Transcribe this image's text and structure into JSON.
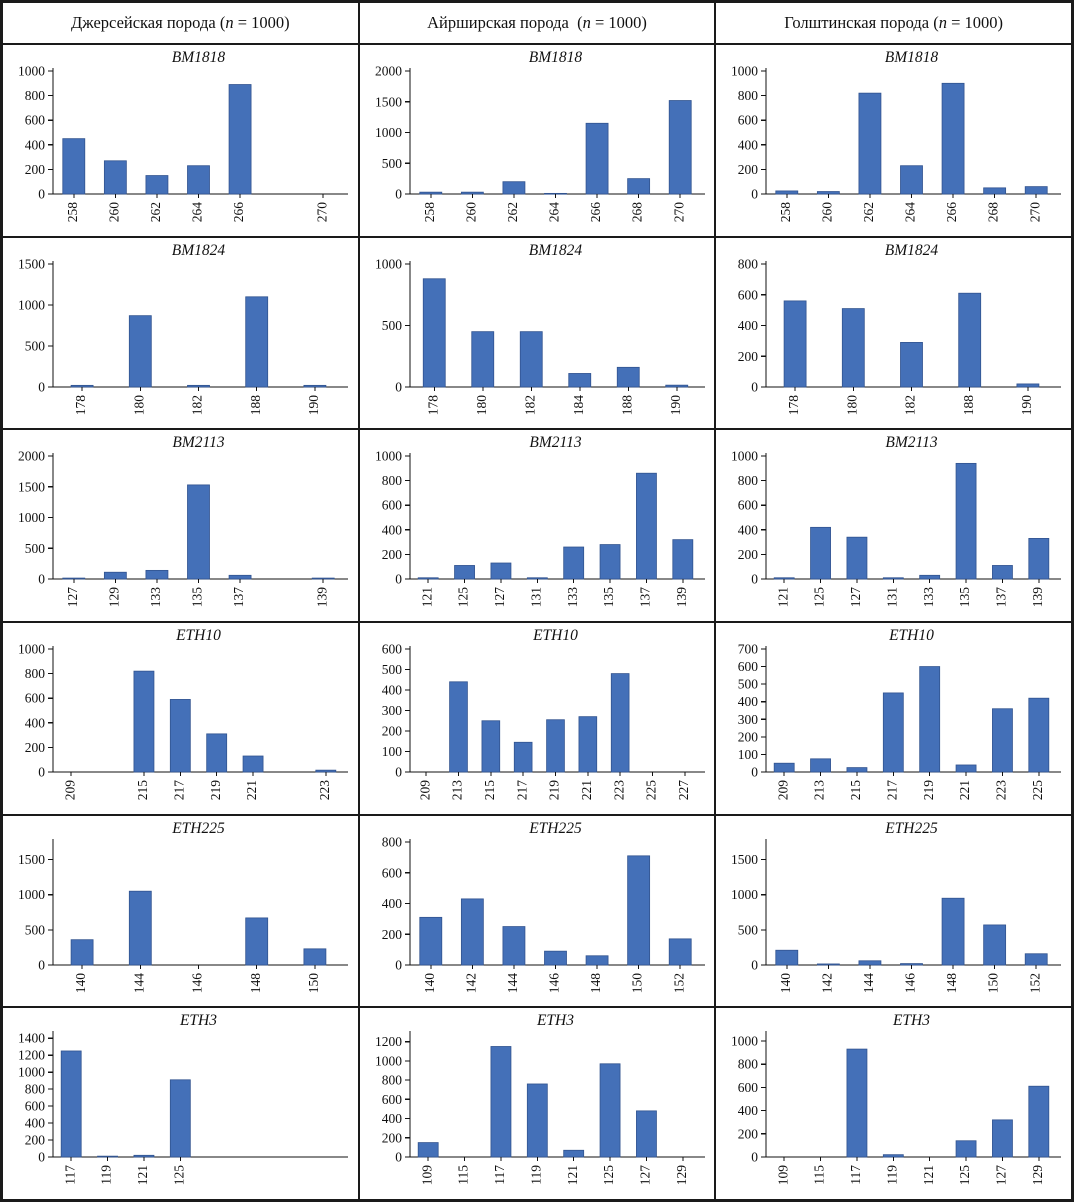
{
  "header": {
    "columns": [
      {
        "name": "Джерсейская порода",
        "open": " (",
        "n": "n",
        "rest": " = 1000)"
      },
      {
        "name": "Айрширская порода",
        "open": "  (",
        "n": "n",
        "rest": " = 1000)"
      },
      {
        "name": "Голштинская порода",
        "open": " (",
        "n": "n",
        "rest": " = 1000)"
      }
    ]
  },
  "colors": {
    "bar": "#4470b8",
    "bar_edge": "#31538f",
    "axis": "#111111"
  },
  "chart_data": [
    {
      "type": "bar",
      "breed": "Джерсейская",
      "title": "BM1818",
      "ymax": 1000,
      "yticks": [
        0,
        200,
        400,
        600,
        800,
        1000
      ],
      "categories": [
        "258",
        "260",
        "262",
        "264",
        "266",
        "",
        "270"
      ],
      "values": [
        450,
        270,
        150,
        230,
        890,
        0,
        0
      ]
    },
    {
      "type": "bar",
      "breed": "Айрширская",
      "title": "BM1818",
      "ymax": 2000,
      "yticks": [
        0,
        500,
        1000,
        1500,
        2000
      ],
      "categories": [
        "258",
        "260",
        "262",
        "264",
        "266",
        "268",
        "270"
      ],
      "values": [
        30,
        30,
        200,
        10,
        1150,
        250,
        1520
      ]
    },
    {
      "type": "bar",
      "breed": "Голштинская",
      "title": "BM1818",
      "ymax": 1000,
      "yticks": [
        0,
        200,
        400,
        600,
        800,
        1000
      ],
      "categories": [
        "258",
        "260",
        "262",
        "264",
        "266",
        "268",
        "270"
      ],
      "values": [
        25,
        20,
        820,
        230,
        900,
        50,
        60
      ]
    },
    {
      "type": "bar",
      "breed": "Джерсейская",
      "title": "BM1824",
      "ymax": 1500,
      "yticks": [
        0,
        500,
        1000,
        1500
      ],
      "categories": [
        "178",
        "180",
        "182",
        "188",
        "190"
      ],
      "values": [
        20,
        870,
        20,
        1100,
        20
      ]
    },
    {
      "type": "bar",
      "breed": "Айрширская",
      "title": "BM1824",
      "ymax": 1000,
      "yticks": [
        0,
        500,
        1000
      ],
      "categories": [
        "178",
        "180",
        "182",
        "184",
        "188",
        "190"
      ],
      "values": [
        880,
        450,
        450,
        110,
        160,
        15
      ]
    },
    {
      "type": "bar",
      "breed": "Голштинская",
      "title": "BM1824",
      "ymax": 800,
      "yticks": [
        0,
        200,
        400,
        600,
        800
      ],
      "categories": [
        "178",
        "180",
        "182",
        "188",
        "190"
      ],
      "values": [
        560,
        510,
        290,
        610,
        20
      ]
    },
    {
      "type": "bar",
      "breed": "Джерсейская",
      "title": "BM2113",
      "ymax": 2000,
      "yticks": [
        0,
        500,
        1000,
        1500,
        2000
      ],
      "categories": [
        "127",
        "129",
        "133",
        "135",
        "137",
        "",
        "139"
      ],
      "values": [
        15,
        110,
        140,
        1530,
        60,
        0,
        15
      ]
    },
    {
      "type": "bar",
      "breed": "Айрширская",
      "title": "BM2113",
      "ymax": 1000,
      "yticks": [
        0,
        200,
        400,
        600,
        800,
        1000
      ],
      "categories": [
        "121",
        "125",
        "127",
        "131",
        "133",
        "135",
        "137",
        "139"
      ],
      "values": [
        10,
        110,
        130,
        10,
        260,
        280,
        860,
        320
      ]
    },
    {
      "type": "bar",
      "breed": "Голштинская",
      "title": "BM2113",
      "ymax": 1000,
      "yticks": [
        0,
        200,
        400,
        600,
        800,
        1000
      ],
      "categories": [
        "121",
        "125",
        "127",
        "131",
        "133",
        "135",
        "137",
        "139"
      ],
      "values": [
        10,
        420,
        340,
        10,
        30,
        940,
        110,
        330
      ]
    },
    {
      "type": "bar",
      "breed": "Джерсейская",
      "title": "ETH10",
      "ymax": 1000,
      "yticks": [
        0,
        200,
        400,
        600,
        800,
        1000
      ],
      "categories": [
        "209",
        "",
        "215",
        "217",
        "219",
        "221",
        "",
        "223"
      ],
      "values": [
        0,
        0,
        820,
        590,
        310,
        130,
        0,
        15
      ]
    },
    {
      "type": "bar",
      "breed": "Айрширская",
      "title": "ETH10",
      "ymax": 600,
      "yticks": [
        0,
        100,
        200,
        300,
        400,
        500,
        600
      ],
      "categories": [
        "209",
        "213",
        "215",
        "217",
        "219",
        "221",
        "223",
        "225",
        "227"
      ],
      "values": [
        0,
        440,
        250,
        145,
        255,
        270,
        480,
        0,
        0
      ]
    },
    {
      "type": "bar",
      "breed": "Голштинская",
      "title": "ETH10",
      "ymax": 700,
      "yticks": [
        0,
        100,
        200,
        300,
        400,
        500,
        600,
        700
      ],
      "categories": [
        "209",
        "213",
        "215",
        "217",
        "219",
        "221",
        "223",
        "225"
      ],
      "values": [
        50,
        75,
        25,
        450,
        600,
        40,
        360,
        420
      ]
    },
    {
      "type": "bar",
      "breed": "Джерсейская",
      "title": "ETH225",
      "ymax": 1750,
      "yticks": [
        0,
        500,
        1000,
        1500
      ],
      "categories": [
        "140",
        "144",
        "146",
        "148",
        "150"
      ],
      "values": [
        360,
        1050,
        0,
        670,
        230
      ]
    },
    {
      "type": "bar",
      "breed": "Айрширская",
      "title": "ETH225",
      "ymax": 800,
      "yticks": [
        0,
        200,
        400,
        600,
        800
      ],
      "categories": [
        "140",
        "142",
        "144",
        "146",
        "148",
        "150",
        "152"
      ],
      "values": [
        310,
        430,
        250,
        90,
        60,
        710,
        170
      ]
    },
    {
      "type": "bar",
      "breed": "Голштинская",
      "title": "ETH225",
      "ymax": 1750,
      "yticks": [
        0,
        500,
        1000,
        1500
      ],
      "categories": [
        "140",
        "142",
        "144",
        "146",
        "148",
        "150",
        "152"
      ],
      "values": [
        210,
        15,
        60,
        20,
        950,
        570,
        160
      ]
    },
    {
      "type": "bar",
      "breed": "Джерсейская",
      "title": "ETH3",
      "ymax": 1450,
      "yticks": [
        0,
        200,
        400,
        600,
        800,
        1000,
        1200,
        1400
      ],
      "categories": [
        "117",
        "119",
        "121",
        "125",
        "",
        "",
        "",
        ""
      ],
      "values": [
        1250,
        10,
        20,
        910,
        0,
        0,
        0,
        0
      ]
    },
    {
      "type": "bar",
      "breed": "Айрширская",
      "title": "ETH3",
      "ymax": 1280,
      "yticks": [
        0,
        200,
        400,
        600,
        800,
        1000,
        1200
      ],
      "categories": [
        "109",
        "115",
        "117",
        "119",
        "121",
        "125",
        "127",
        "129"
      ],
      "values": [
        150,
        0,
        1150,
        760,
        70,
        970,
        480,
        0
      ]
    },
    {
      "type": "bar",
      "breed": "Голштинская",
      "title": "ETH3",
      "ymax": 1060,
      "yticks": [
        0,
        200,
        400,
        600,
        800,
        1000
      ],
      "categories": [
        "109",
        "115",
        "117",
        "119",
        "121",
        "125",
        "127",
        "129"
      ],
      "values": [
        0,
        0,
        930,
        20,
        0,
        140,
        320,
        610
      ]
    }
  ]
}
